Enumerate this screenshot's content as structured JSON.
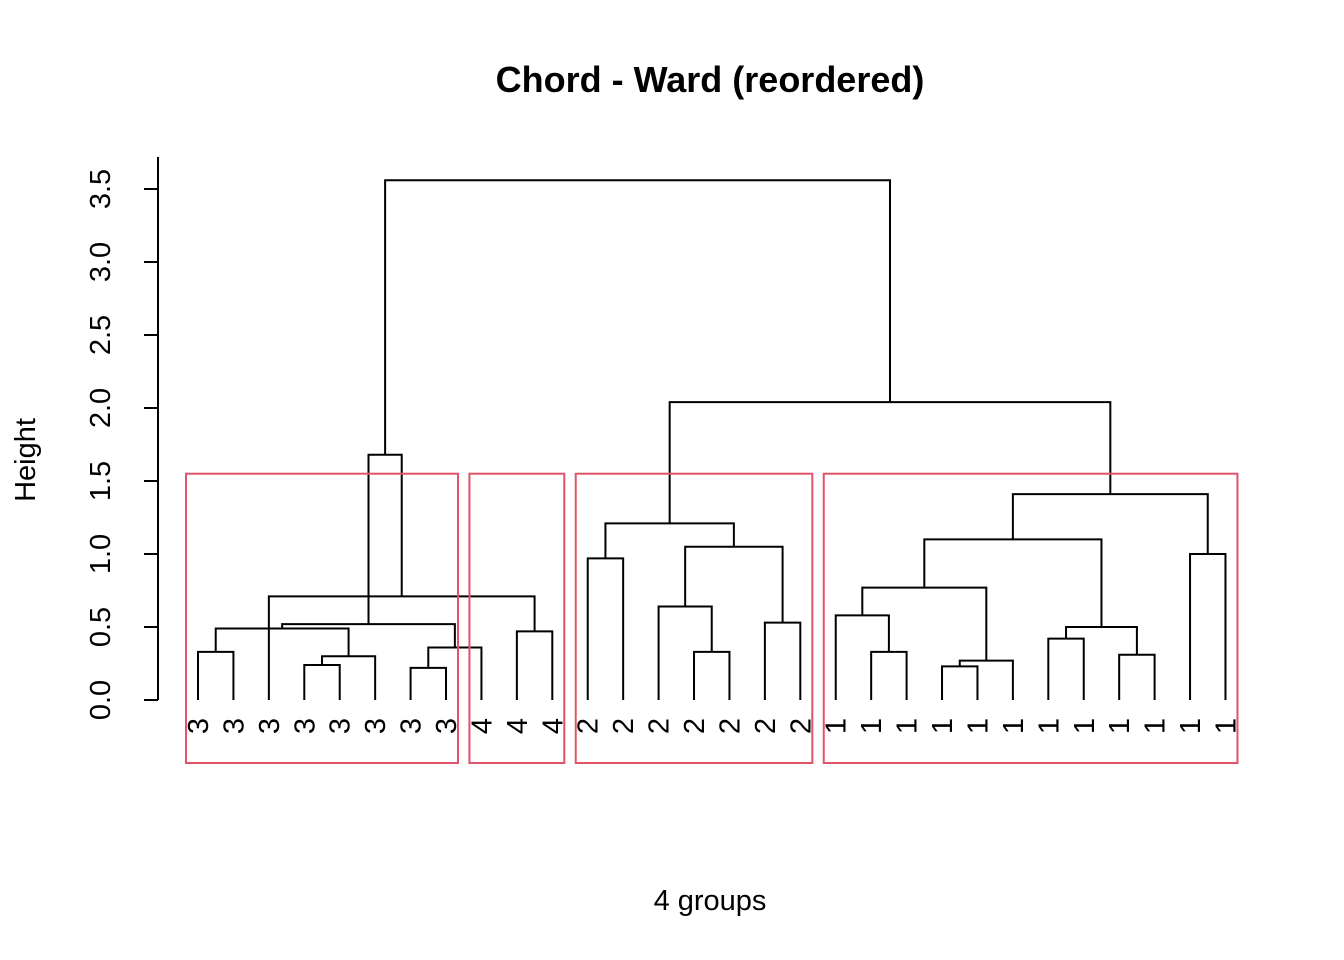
{
  "chart_data": {
    "type": "dendrogram",
    "title": "Chord - Ward (reordered)",
    "xlabel": "4 groups",
    "ylabel": "Height",
    "ylim": [
      0,
      3.7
    ],
    "yticks": [
      "0.0",
      "0.5",
      "1.0",
      "1.5",
      "2.0",
      "2.5",
      "3.0",
      "3.5"
    ],
    "ytick_values": [
      0,
      0.5,
      1.0,
      1.5,
      2.0,
      2.5,
      3.0,
      3.5
    ],
    "leaf_labels": [
      "3",
      "3",
      "3",
      "3",
      "3",
      "3",
      "3",
      "3",
      "4",
      "4",
      "4",
      "2",
      "2",
      "2",
      "2",
      "2",
      "2",
      "2",
      "1",
      "1",
      "1",
      "1",
      "1",
      "1",
      "1",
      "1",
      "1",
      "1",
      "1",
      "1"
    ],
    "cut_height": 1.55,
    "group_box_color": "#DF536B",
    "groups": [
      {
        "label": "3",
        "first_leaf": 1,
        "last_leaf": 8
      },
      {
        "label": "4",
        "first_leaf": 9,
        "last_leaf": 11
      },
      {
        "label": "2",
        "first_leaf": 12,
        "last_leaf": 18
      },
      {
        "label": "1",
        "first_leaf": 19,
        "last_leaf": 30
      }
    ],
    "merges": [
      {
        "left": -7,
        "right": -8,
        "height": 0.22
      },
      {
        "left": -4,
        "right": -5,
        "height": 0.24
      },
      {
        "left": 2,
        "right": -6,
        "height": 0.3
      },
      {
        "left": -1,
        "right": -2,
        "height": 0.33
      },
      {
        "left": 4,
        "right": 3,
        "height": 0.49
      },
      {
        "left": 1,
        "right": -9,
        "height": 0.36
      },
      {
        "left": 5,
        "right": 6,
        "height": 0.52
      },
      {
        "left": -10,
        "right": -11,
        "height": 0.47
      },
      {
        "left": -3,
        "right": 8,
        "height": 0.71
      },
      {
        "left": 7,
        "right": 9,
        "height": 1.68
      },
      {
        "left": -15,
        "right": -16,
        "height": 0.33
      },
      {
        "left": -14,
        "right": 11,
        "height": 0.64
      },
      {
        "left": -17,
        "right": -18,
        "height": 0.53
      },
      {
        "left": 12,
        "right": 13,
        "height": 1.05
      },
      {
        "left": -12,
        "right": -13,
        "height": 0.97
      },
      {
        "left": 15,
        "right": 14,
        "height": 1.21
      },
      {
        "left": -20,
        "right": -21,
        "height": 0.33
      },
      {
        "left": -19,
        "right": 17,
        "height": 0.58
      },
      {
        "left": -22,
        "right": -23,
        "height": 0.23
      },
      {
        "left": 19,
        "right": -24,
        "height": 0.27
      },
      {
        "left": 18,
        "right": 20,
        "height": 0.77
      },
      {
        "left": -25,
        "right": -26,
        "height": 0.42
      },
      {
        "left": -27,
        "right": -28,
        "height": 0.31
      },
      {
        "left": 22,
        "right": 23,
        "height": 0.5
      },
      {
        "left": 21,
        "right": 24,
        "height": 1.1
      },
      {
        "left": -29,
        "right": -30,
        "height": 1.0
      },
      {
        "left": 25,
        "right": 26,
        "height": 1.41
      },
      {
        "left": 16,
        "right": 27,
        "height": 2.04
      },
      {
        "left": 10,
        "right": 28,
        "height": 3.56
      }
    ]
  }
}
